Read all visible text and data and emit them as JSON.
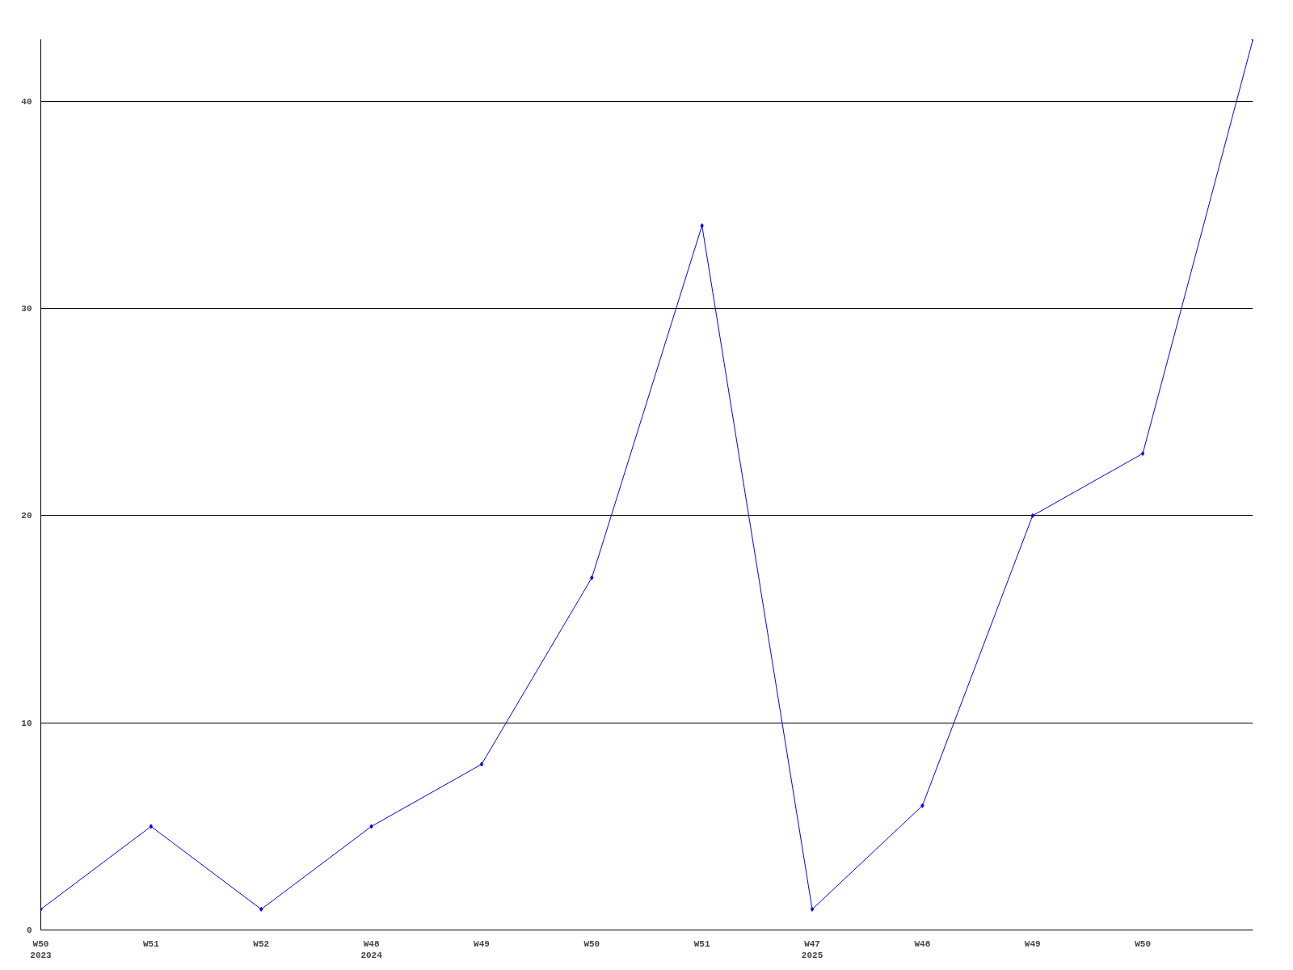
{
  "chart_data": {
    "type": "line",
    "categories": [
      "W50\n2023",
      "W51",
      "W52",
      "W48\n2024",
      "W49",
      "W50",
      "W51",
      "W47\n2025",
      "W48",
      "W49",
      "W50",
      null
    ],
    "series": [
      {
        "color": "#0000ff",
        "values": [
          1,
          5,
          1,
          5,
          8,
          17,
          34,
          1,
          6,
          20,
          23,
          43
        ]
      }
    ],
    "ylim": [
      0,
      43
    ],
    "yticks": [
      0,
      10,
      20,
      30,
      40
    ],
    "grid": "y",
    "marker": "diamond",
    "line_style": "solid"
  }
}
